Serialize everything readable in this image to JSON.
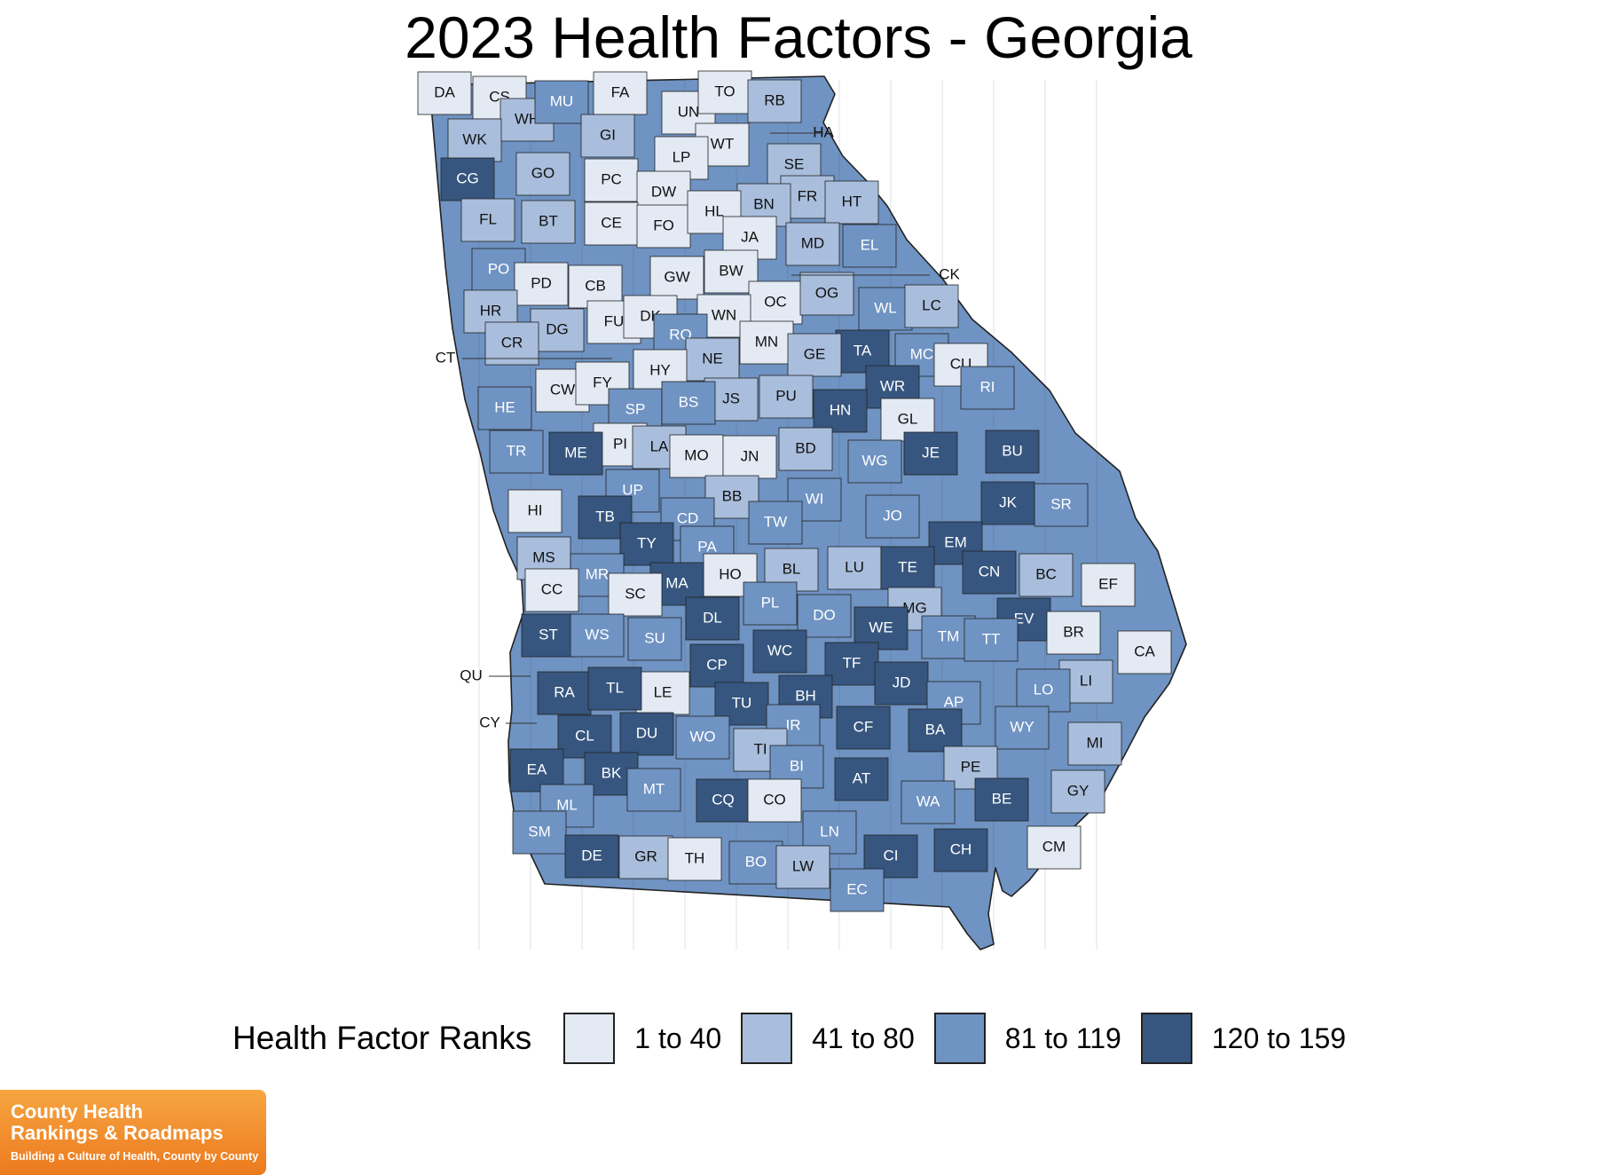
{
  "title": "2023 Health Factors - Georgia",
  "legend": {
    "title": "Health Factor Ranks",
    "items": [
      {
        "label": "1 to 40",
        "color": "#e3eaf4"
      },
      {
        "label": "41 to 80",
        "color": "#a9bedc"
      },
      {
        "label": "81 to 119",
        "color": "#6f93c2"
      },
      {
        "label": "120 to 159",
        "color": "#36567f"
      }
    ]
  },
  "counties": [
    {
      "code": "DA",
      "cls": 0
    },
    {
      "code": "CS",
      "cls": 0
    },
    {
      "code": "WH",
      "cls": 1
    },
    {
      "code": "MU",
      "cls": 2
    },
    {
      "code": "FA",
      "cls": 0
    },
    {
      "code": "UN",
      "cls": 0
    },
    {
      "code": "TO",
      "cls": 0
    },
    {
      "code": "RB",
      "cls": 1
    },
    {
      "code": "WK",
      "cls": 1
    },
    {
      "code": "GI",
      "cls": 1
    },
    {
      "code": "WT",
      "cls": 0
    },
    {
      "code": "HA",
      "cls": 1
    },
    {
      "code": "LP",
      "cls": 0
    },
    {
      "code": "SE",
      "cls": 1
    },
    {
      "code": "CG",
      "cls": 3
    },
    {
      "code": "GO",
      "cls": 1
    },
    {
      "code": "PC",
      "cls": 0
    },
    {
      "code": "DW",
      "cls": 0
    },
    {
      "code": "FR",
      "cls": 1
    },
    {
      "code": "HT",
      "cls": 1
    },
    {
      "code": "BN",
      "cls": 1
    },
    {
      "code": "FL",
      "cls": 1
    },
    {
      "code": "BT",
      "cls": 1
    },
    {
      "code": "CE",
      "cls": 0
    },
    {
      "code": "FO",
      "cls": 0
    },
    {
      "code": "HL",
      "cls": 0
    },
    {
      "code": "JA",
      "cls": 0
    },
    {
      "code": "MD",
      "cls": 1
    },
    {
      "code": "EL",
      "cls": 2
    },
    {
      "code": "PO",
      "cls": 2
    },
    {
      "code": "PD",
      "cls": 0
    },
    {
      "code": "CB",
      "cls": 0
    },
    {
      "code": "GW",
      "cls": 0
    },
    {
      "code": "BW",
      "cls": 0
    },
    {
      "code": "CK",
      "cls": 0
    },
    {
      "code": "OC",
      "cls": 0
    },
    {
      "code": "OG",
      "cls": 1
    },
    {
      "code": "HR",
      "cls": 1
    },
    {
      "code": "WL",
      "cls": 2
    },
    {
      "code": "LC",
      "cls": 1
    },
    {
      "code": "DG",
      "cls": 1
    },
    {
      "code": "FU",
      "cls": 0
    },
    {
      "code": "DK",
      "cls": 0
    },
    {
      "code": "WN",
      "cls": 0
    },
    {
      "code": "CR",
      "cls": 1
    },
    {
      "code": "RO",
      "cls": 2
    },
    {
      "code": "MN",
      "cls": 0
    },
    {
      "code": "CT",
      "cls": 1
    },
    {
      "code": "NE",
      "cls": 1
    },
    {
      "code": "TA",
      "cls": 3
    },
    {
      "code": "MC",
      "cls": 2
    },
    {
      "code": "CU",
      "cls": 0
    },
    {
      "code": "GE",
      "cls": 1
    },
    {
      "code": "HY",
      "cls": 0
    },
    {
      "code": "WR",
      "cls": 3
    },
    {
      "code": "CW",
      "cls": 0
    },
    {
      "code": "FY",
      "cls": 0
    },
    {
      "code": "JS",
      "cls": 1
    },
    {
      "code": "PU",
      "cls": 1
    },
    {
      "code": "RI",
      "cls": 2
    },
    {
      "code": "HE",
      "cls": 2
    },
    {
      "code": "SP",
      "cls": 2
    },
    {
      "code": "BS",
      "cls": 2
    },
    {
      "code": "HN",
      "cls": 3
    },
    {
      "code": "GL",
      "cls": 0
    },
    {
      "code": "PI",
      "cls": 0
    },
    {
      "code": "LA",
      "cls": 1
    },
    {
      "code": "TR",
      "cls": 2
    },
    {
      "code": "ME",
      "cls": 3
    },
    {
      "code": "MO",
      "cls": 0
    },
    {
      "code": "JN",
      "cls": 0
    },
    {
      "code": "BD",
      "cls": 1
    },
    {
      "code": "JE",
      "cls": 3
    },
    {
      "code": "BU",
      "cls": 3
    },
    {
      "code": "WG",
      "cls": 2
    },
    {
      "code": "UP",
      "cls": 2
    },
    {
      "code": "BB",
      "cls": 1
    },
    {
      "code": "HI",
      "cls": 0
    },
    {
      "code": "WI",
      "cls": 2
    },
    {
      "code": "JK",
      "cls": 3
    },
    {
      "code": "SR",
      "cls": 2
    },
    {
      "code": "TB",
      "cls": 3
    },
    {
      "code": "CD",
      "cls": 2
    },
    {
      "code": "TW",
      "cls": 2
    },
    {
      "code": "JO",
      "cls": 2
    },
    {
      "code": "TY",
      "cls": 3
    },
    {
      "code": "PA",
      "cls": 2
    },
    {
      "code": "EM",
      "cls": 3
    },
    {
      "code": "MS",
      "cls": 1
    },
    {
      "code": "HO",
      "cls": 0
    },
    {
      "code": "LU",
      "cls": 1
    },
    {
      "code": "BL",
      "cls": 1
    },
    {
      "code": "TE",
      "cls": 3
    },
    {
      "code": "CN",
      "cls": 3
    },
    {
      "code": "BC",
      "cls": 1
    },
    {
      "code": "MR",
      "cls": 2
    },
    {
      "code": "MA",
      "cls": 3
    },
    {
      "code": "EF",
      "cls": 0
    },
    {
      "code": "CC",
      "cls": 0
    },
    {
      "code": "SC",
      "cls": 0
    },
    {
      "code": "PL",
      "cls": 2
    },
    {
      "code": "DL",
      "cls": 3
    },
    {
      "code": "DO",
      "cls": 2
    },
    {
      "code": "MG",
      "cls": 1
    },
    {
      "code": "EV",
      "cls": 3
    },
    {
      "code": "ST",
      "cls": 3
    },
    {
      "code": "WS",
      "cls": 2
    },
    {
      "code": "SU",
      "cls": 2
    },
    {
      "code": "WE",
      "cls": 3
    },
    {
      "code": "TM",
      "cls": 2
    },
    {
      "code": "TT",
      "cls": 2
    },
    {
      "code": "BR",
      "cls": 0
    },
    {
      "code": "CA",
      "cls": 0
    },
    {
      "code": "CP",
      "cls": 3
    },
    {
      "code": "WC",
      "cls": 3
    },
    {
      "code": "TF",
      "cls": 3
    },
    {
      "code": "QU",
      "cls": 3
    },
    {
      "code": "LE",
      "cls": 0
    },
    {
      "code": "LI",
      "cls": 1
    },
    {
      "code": "RA",
      "cls": 3
    },
    {
      "code": "TL",
      "cls": 3
    },
    {
      "code": "JD",
      "cls": 3
    },
    {
      "code": "LO",
      "cls": 2
    },
    {
      "code": "TU",
      "cls": 3
    },
    {
      "code": "BH",
      "cls": 3
    },
    {
      "code": "AP",
      "cls": 2
    },
    {
      "code": "CF",
      "cls": 3
    },
    {
      "code": "CY",
      "cls": 3
    },
    {
      "code": "CL",
      "cls": 3
    },
    {
      "code": "DU",
      "cls": 3
    },
    {
      "code": "IR",
      "cls": 2
    },
    {
      "code": "BA",
      "cls": 3
    },
    {
      "code": "WY",
      "cls": 2
    },
    {
      "code": "MI",
      "cls": 1
    },
    {
      "code": "WO",
      "cls": 2
    },
    {
      "code": "TI",
      "cls": 1
    },
    {
      "code": "EA",
      "cls": 3
    },
    {
      "code": "BK",
      "cls": 3
    },
    {
      "code": "BI",
      "cls": 2
    },
    {
      "code": "PE",
      "cls": 1
    },
    {
      "code": "AT",
      "cls": 3
    },
    {
      "code": "MT",
      "cls": 2
    },
    {
      "code": "GY",
      "cls": 1
    },
    {
      "code": "ML",
      "cls": 2
    },
    {
      "code": "CQ",
      "cls": 3
    },
    {
      "code": "CO",
      "cls": 0
    },
    {
      "code": "WA",
      "cls": 2
    },
    {
      "code": "BE",
      "cls": 3
    },
    {
      "code": "SM",
      "cls": 2
    },
    {
      "code": "LN",
      "cls": 2
    },
    {
      "code": "CM",
      "cls": 0
    },
    {
      "code": "DE",
      "cls": 3
    },
    {
      "code": "GR",
      "cls": 1
    },
    {
      "code": "TH",
      "cls": 0
    },
    {
      "code": "BO",
      "cls": 2
    },
    {
      "code": "LW",
      "cls": 1
    },
    {
      "code": "CI",
      "cls": 3
    },
    {
      "code": "CH",
      "cls": 3
    },
    {
      "code": "EC",
      "cls": 2
    }
  ],
  "logo": {
    "line1": "County Health",
    "line2": "Rankings & Roadmaps",
    "tagline": "Building a Culture of Health, County by County"
  }
}
